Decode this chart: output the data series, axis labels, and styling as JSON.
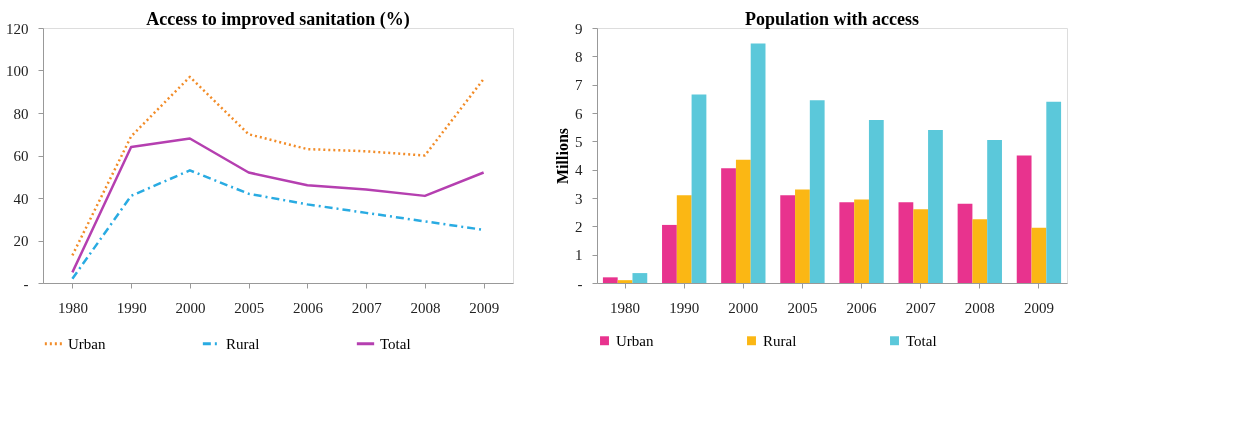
{
  "chart_data": [
    {
      "type": "line",
      "title": "Access to improved sanitation (%)",
      "categories": [
        "1980",
        "1990",
        "2000",
        "2005",
        "2006",
        "2007",
        "2008",
        "2009"
      ],
      "series": [
        {
          "name": "Urban",
          "color": "#f28c28",
          "line_style": "dotted",
          "values": [
            13,
            69,
            97,
            70,
            63,
            62,
            60,
            96
          ]
        },
        {
          "name": "Rural",
          "color": "#29abe2",
          "line_style": "dashed",
          "values": [
            2,
            41,
            53,
            42,
            37,
            33,
            29,
            25
          ]
        },
        {
          "name": "Total",
          "color": "#b53fb0",
          "line_style": "solid",
          "values": [
            5,
            64,
            68,
            52,
            46,
            44,
            41,
            52
          ]
        }
      ],
      "ylim": [
        0,
        120
      ],
      "yticks": [
        {
          "value": 0,
          "label": "-"
        },
        20,
        40,
        60,
        80,
        100,
        120
      ],
      "grid": false,
      "legend": "bottom",
      "marker": "none"
    },
    {
      "type": "bar",
      "title": "Population with access",
      "ylabel": "Millions",
      "categories": [
        "1980",
        "1990",
        "2000",
        "2005",
        "2006",
        "2007",
        "2008",
        "2009"
      ],
      "series": [
        {
          "name": "Urban",
          "color": "#e8338e",
          "values": [
            0.2,
            2.05,
            4.05,
            3.1,
            2.85,
            2.85,
            2.8,
            4.5
          ]
        },
        {
          "name": "Rural",
          "color": "#fbb714",
          "values": [
            0.1,
            3.1,
            4.35,
            3.3,
            2.95,
            2.6,
            2.25,
            1.95
          ]
        },
        {
          "name": "Total",
          "color": "#5bc8da",
          "values": [
            0.35,
            6.65,
            8.45,
            6.45,
            5.75,
            5.4,
            5.05,
            6.4
          ]
        }
      ],
      "ylim": [
        0,
        9
      ],
      "yticks": [
        {
          "value": 0,
          "label": "-"
        },
        1,
        2,
        3,
        4,
        5,
        6,
        7,
        8,
        9
      ],
      "grid": false,
      "legend": "bottom"
    }
  ]
}
